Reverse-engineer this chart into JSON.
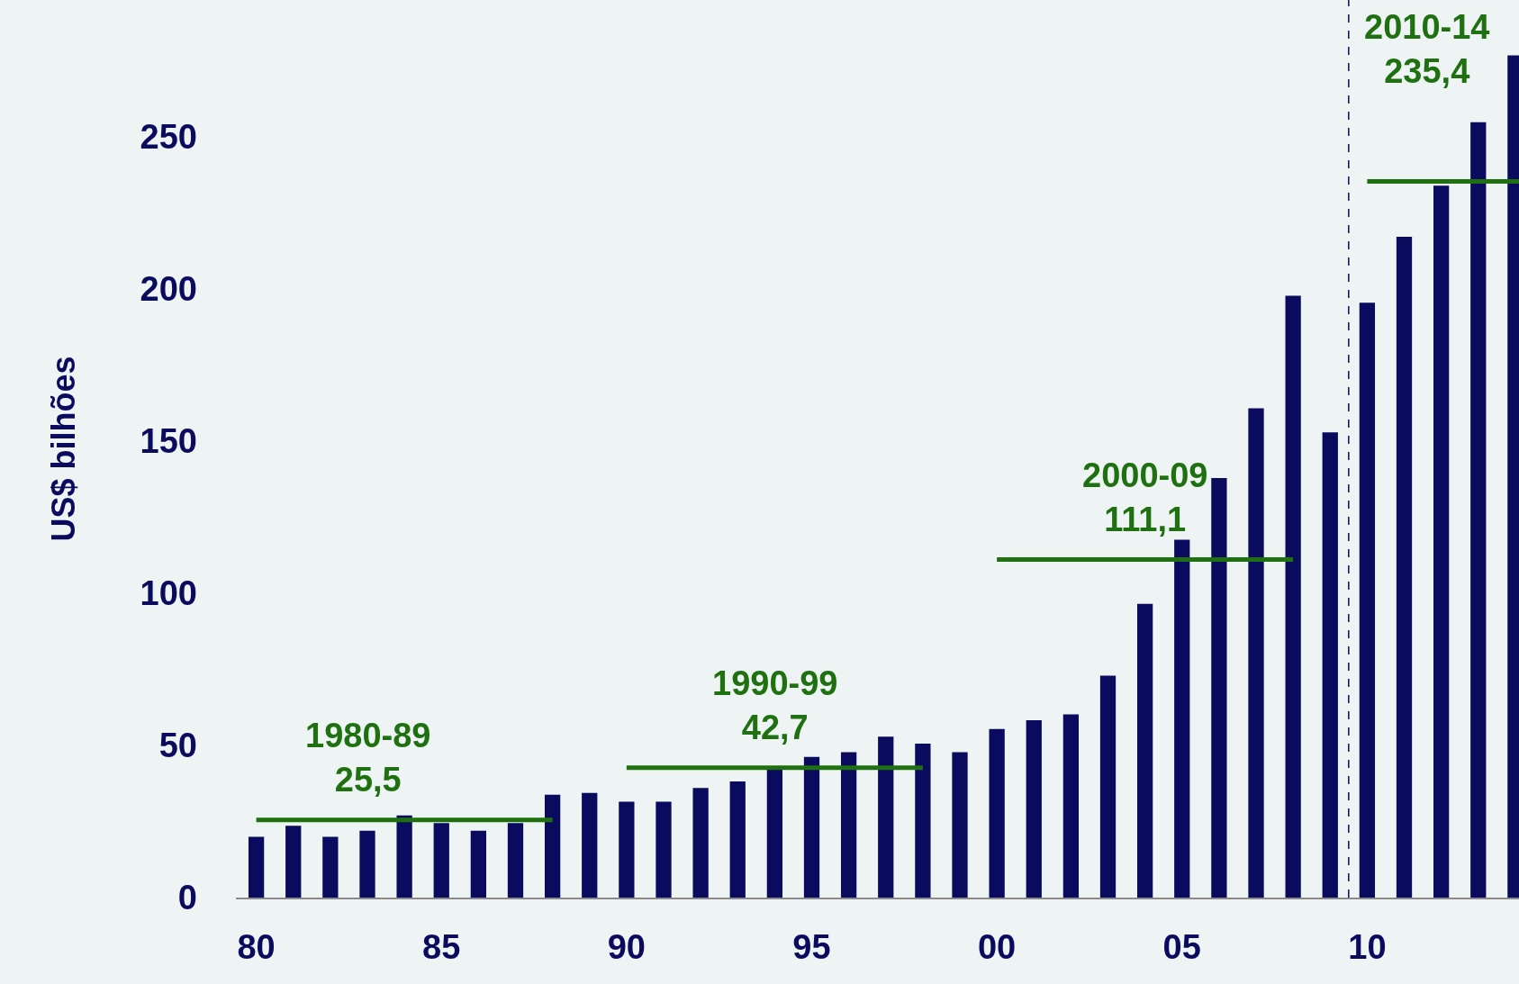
{
  "chart_data": {
    "type": "bar",
    "ylabel": "US$ bilhões",
    "x": [
      1980,
      1981,
      1982,
      1983,
      1984,
      1985,
      1986,
      1987,
      1988,
      1989,
      1990,
      1991,
      1992,
      1993,
      1994,
      1995,
      1996,
      1997,
      1998,
      1999,
      2000,
      2001,
      2002,
      2003,
      2004,
      2005,
      2006,
      2007,
      2008,
      2009,
      2010,
      2011,
      2012,
      2013,
      2014
    ],
    "series": [
      {
        "color": "#0a0a5e",
        "values": [
          20,
          23.6,
          20,
          22,
          27,
          24.5,
          22,
          24.5,
          33.8,
          34.4,
          31.5,
          31.5,
          36,
          38.2,
          42,
          46.2,
          47.8,
          52.9,
          50.6,
          47.8,
          55.4,
          58.3,
          60.2,
          72.9,
          96.5,
          117.8,
          137.9,
          160.8,
          197.8,
          152.9,
          195.5,
          217.2,
          234,
          254.8,
          276.8
        ]
      },
      {
        "type": "line",
        "color": "#1e7010",
        "x": [
          1980,
          1988
        ],
        "values": [
          25.5,
          25.5
        ]
      },
      {
        "type": "line",
        "color": "#1e7010",
        "x": [
          1990,
          1998
        ],
        "values": [
          42.7,
          42.7
        ]
      },
      {
        "type": "line",
        "color": "#1e7010",
        "x": [
          2000,
          2008
        ],
        "values": [
          111.1,
          111.1
        ]
      },
      {
        "type": "line",
        "color": "#1e7010",
        "x": [
          2010,
          2014.1
        ],
        "values": [
          235.4,
          235.4
        ]
      }
    ],
    "annotations": [
      {
        "text": "1980-89\n25,5",
        "x": 1983,
        "y": 25.5
      },
      {
        "text": "1990-99\n42,7",
        "x": 1994,
        "y": 42.7
      },
      {
        "text": "2000-09\n111,1",
        "x": 2004,
        "y": 111.1
      },
      {
        "text": "2010-14\n235,4",
        "x": 2011.6,
        "y": 235.4
      }
    ],
    "ref_lines": [
      {
        "axis": "x",
        "value": 2009.5,
        "color": "#0a0a5e",
        "line_style": "dashed"
      }
    ],
    "xlim": [
      1979.45,
      2014.1
    ],
    "xticks": [
      {
        "value": 1980,
        "label": "80"
      },
      {
        "value": 1985,
        "label": "85"
      },
      {
        "value": 1990,
        "label": "90"
      },
      {
        "value": 1995,
        "label": "95"
      },
      {
        "value": 2000,
        "label": "00"
      },
      {
        "value": 2005,
        "label": "05"
      },
      {
        "value": 2010,
        "label": "10"
      }
    ],
    "ylim": [
      0,
      295
    ],
    "yticks": [
      0,
      50,
      100,
      150,
      200,
      250
    ],
    "grid": false
  }
}
